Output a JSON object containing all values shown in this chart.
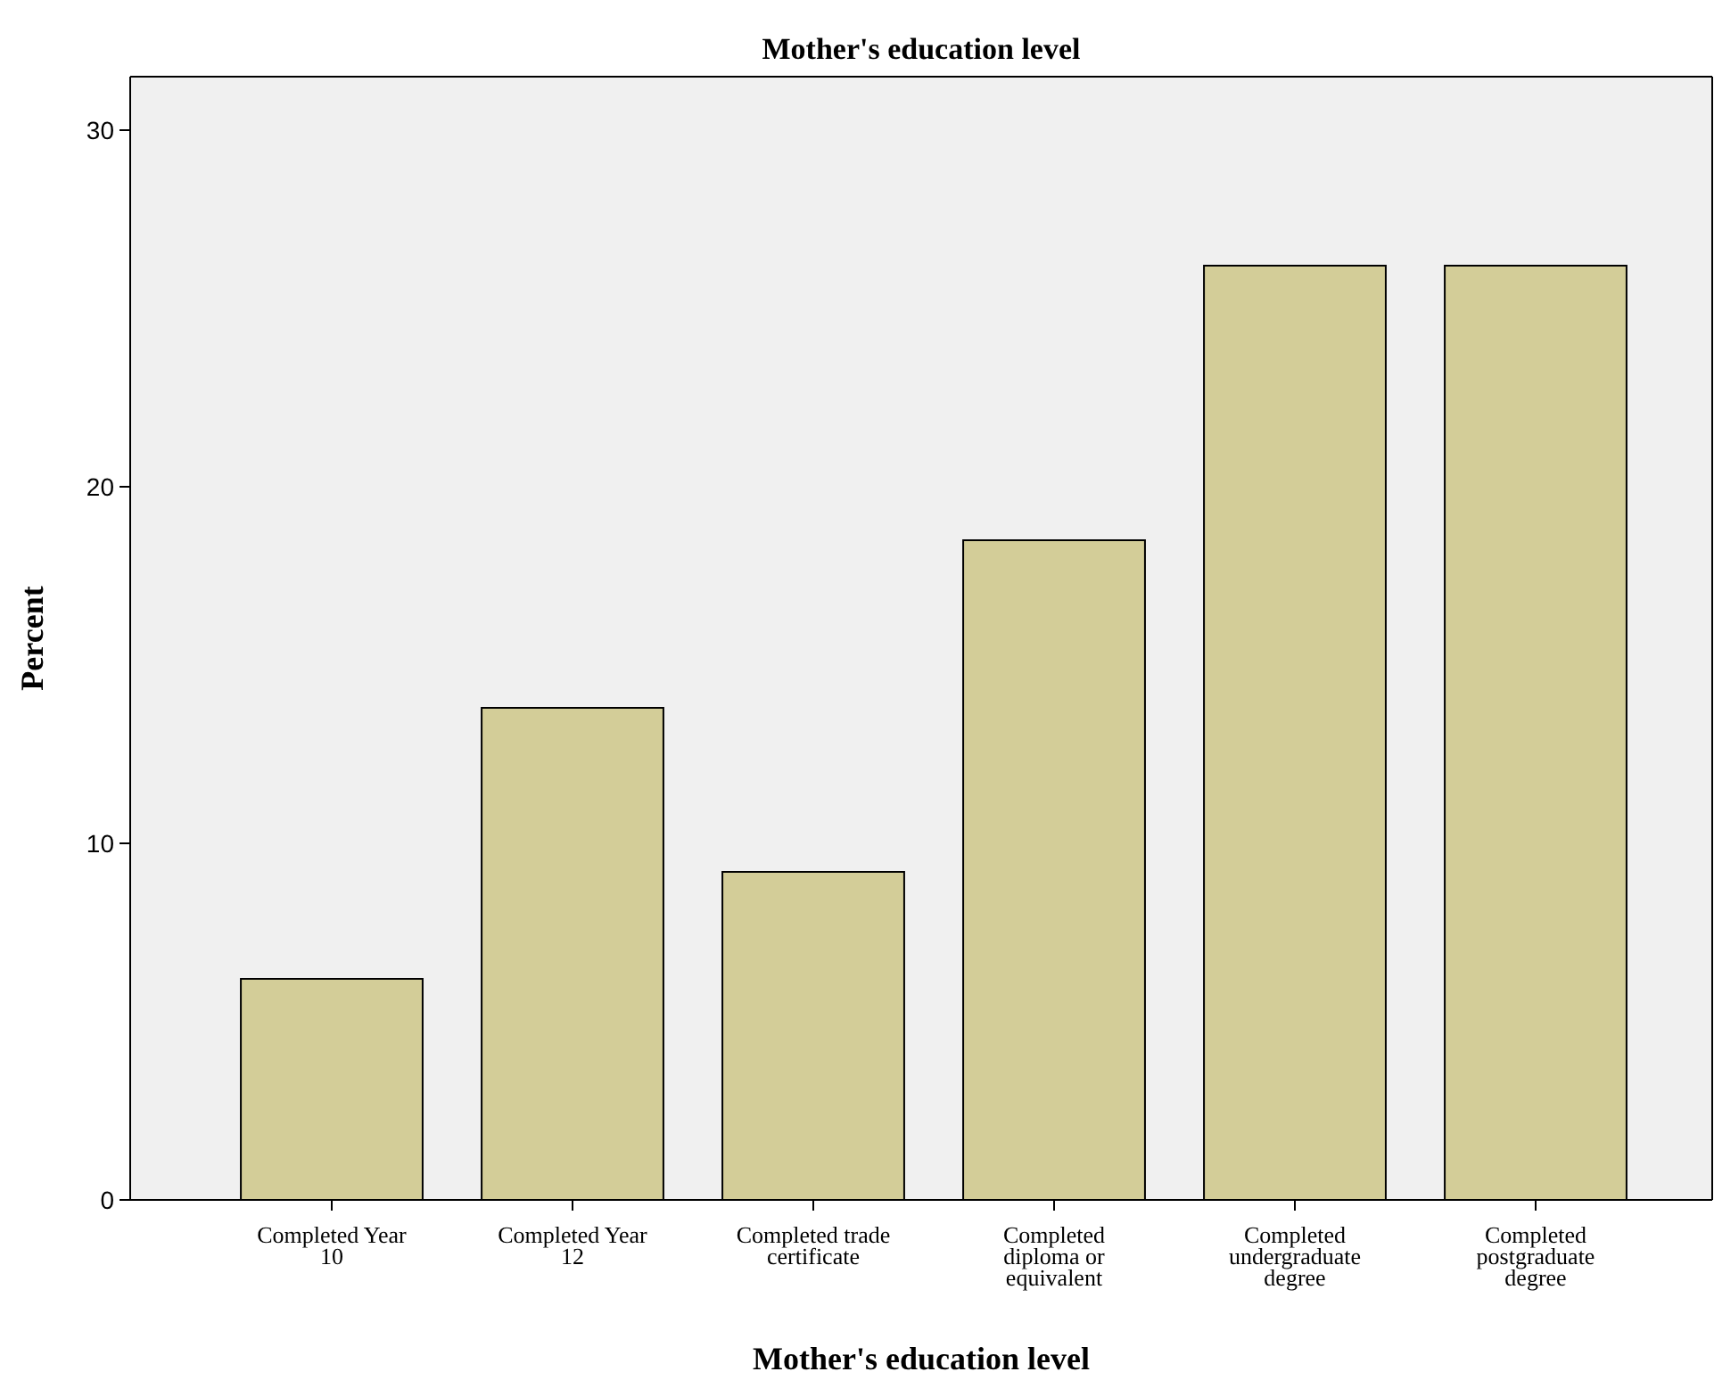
{
  "chart_data": {
    "type": "bar",
    "title": "Mother's education level",
    "xlabel": "Mother's education level",
    "ylabel": "Percent",
    "categories": [
      "Completed Year 10",
      "Completed Year 12",
      "Completed trade certificate",
      "Completed diploma or equivalent",
      "Completed undergraduate degree",
      "Completed postgraduate degree"
    ],
    "values": [
      6.2,
      13.8,
      9.2,
      18.5,
      26.2,
      26.2
    ],
    "color": "#d3cd98",
    "ylim": [
      0,
      31.5
    ],
    "yticks": [
      0,
      10,
      20,
      30
    ],
    "grid": false
  }
}
